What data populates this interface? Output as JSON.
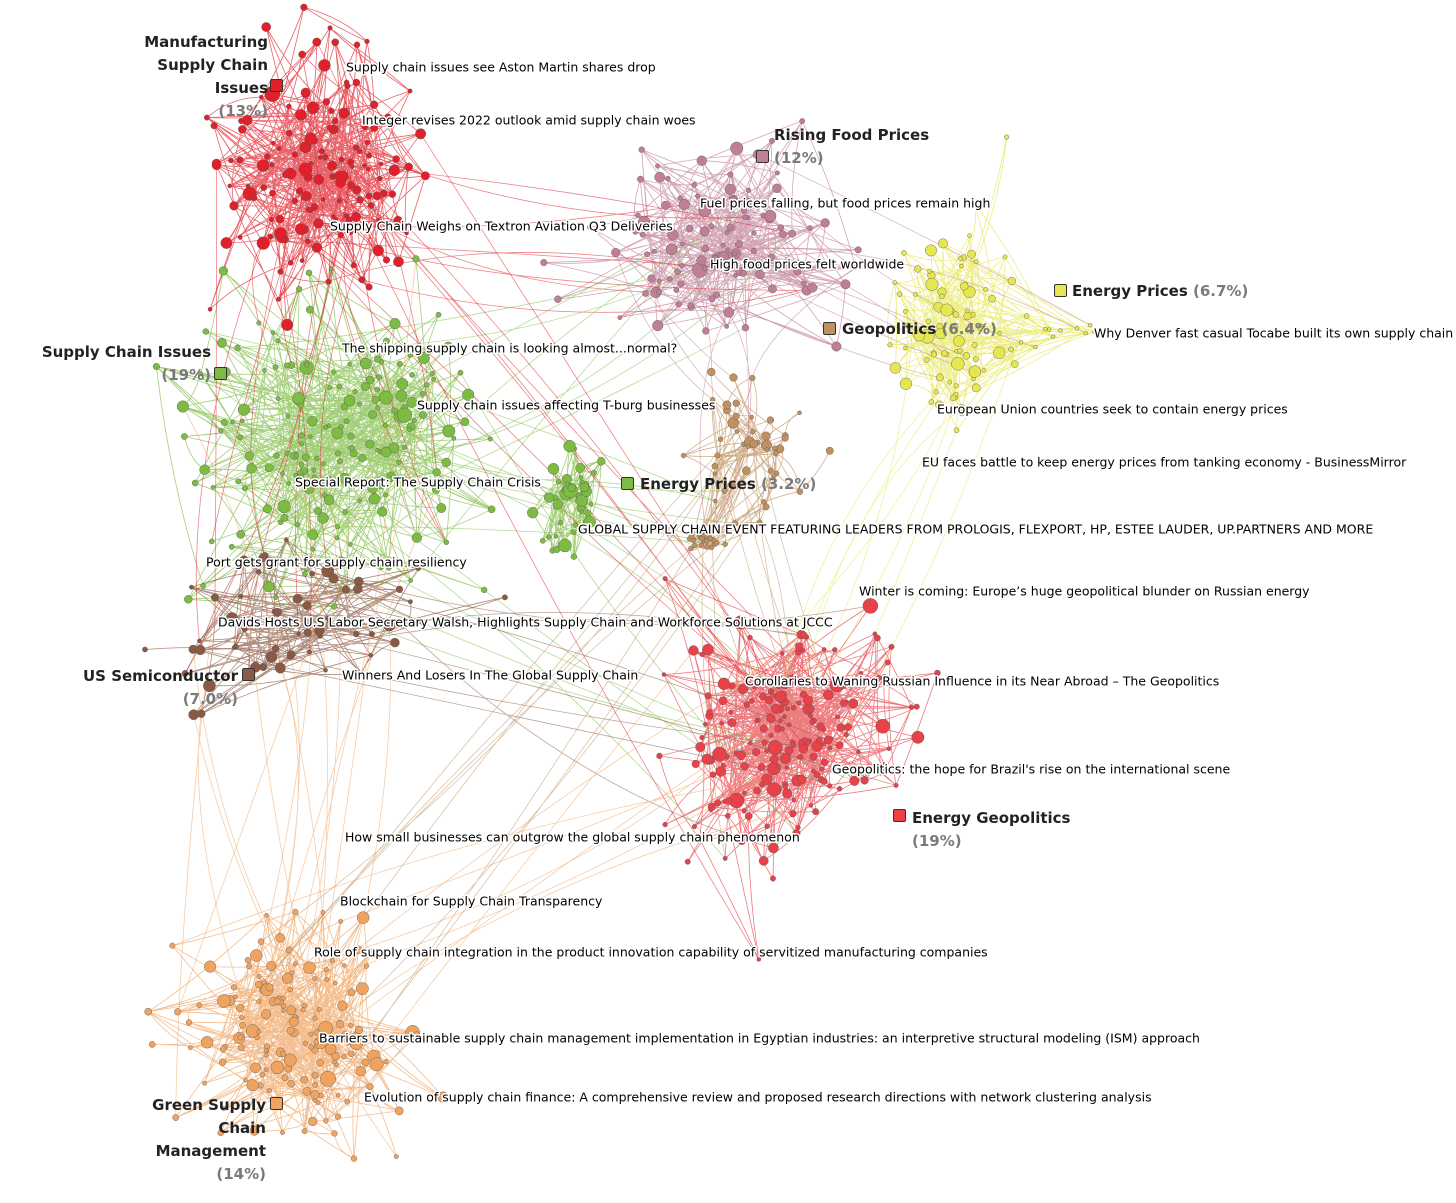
{
  "clusters": [
    {
      "name": "Manufacturing Supply Chain Issues",
      "share": "(13%)",
      "color": "#e0202a"
    },
    {
      "name": "Rising Food Prices",
      "share": "(12%)",
      "color": "#c07f96"
    },
    {
      "name": "Energy Prices",
      "share": "(6.7%)",
      "color": "#e6e650"
    },
    {
      "name": "Geopolitics",
      "share": "(6.4%)",
      "color": "#c0915f"
    },
    {
      "name": "Supply Chain Issues",
      "share": "(19%)",
      "color": "#7dbb42"
    },
    {
      "name": "Energy Prices",
      "share": "(3.2%)",
      "color": "#7dbb42"
    },
    {
      "name": "US Semiconductor",
      "share": "(7.0%)",
      "color": "#8a5a44"
    },
    {
      "name": "Energy Geopolitics",
      "share": "(19%)",
      "color": "#e8414a"
    },
    {
      "name": "Green Supply Chain Management",
      "share": "(14%)",
      "color": "#f0a35f"
    }
  ],
  "articles": [
    "Supply chain issues see Aston Martin shares drop",
    "Integer revises 2022 outlook amid supply chain woes",
    "Supply Chain Weighs on Textron Aviation Q3 Deliveries",
    "Fuel prices falling, but food prices remain high",
    "High food prices felt worldwide",
    "Why Denver fast casual Tocabe built its own supply chain",
    "The shipping supply chain is looking almost...normal?",
    "Supply chain issues affecting T-burg businesses",
    "European Union countries seek to contain energy prices",
    "EU faces battle to keep energy prices from tanking economy - BusinessMirror",
    "Special Report: The Supply Chain Crisis",
    "GLOBAL SUPPLY CHAIN EVENT FEATURING LEADERS FROM PROLOGIS, FLEXPORT, HP, ESTEE LAUDER, UP.PARTNERS AND MORE",
    "Port gets grant for supply chain resiliency",
    "Winter is coming: Europe’s huge geopolitical blunder on Russian energy",
    "Davids Hosts U.S Labor Secretary Walsh, Highlights Supply Chain and Workforce Solutions at JCCC",
    "Winners And Losers In The Global Supply Chain",
    "Corollaries to Waning Russian Influence in its Near Abroad – The Geopolitics",
    "Geopolitics: the hope for Brazil's rise on the international scene",
    "How small businesses can outgrow the global supply chain phenomenon",
    "Blockchain for Supply Chain Transparency",
    "Role of supply chain integration in the product innovation capability of servitized manufacturing companies",
    "Barriers to sustainable supply chain management implementation in Egyptian industries: an interpretive structural modeling (ISM) approach",
    "Evolution of supply chain finance: A comprehensive review and proposed research directions with network clustering analysis"
  ]
}
